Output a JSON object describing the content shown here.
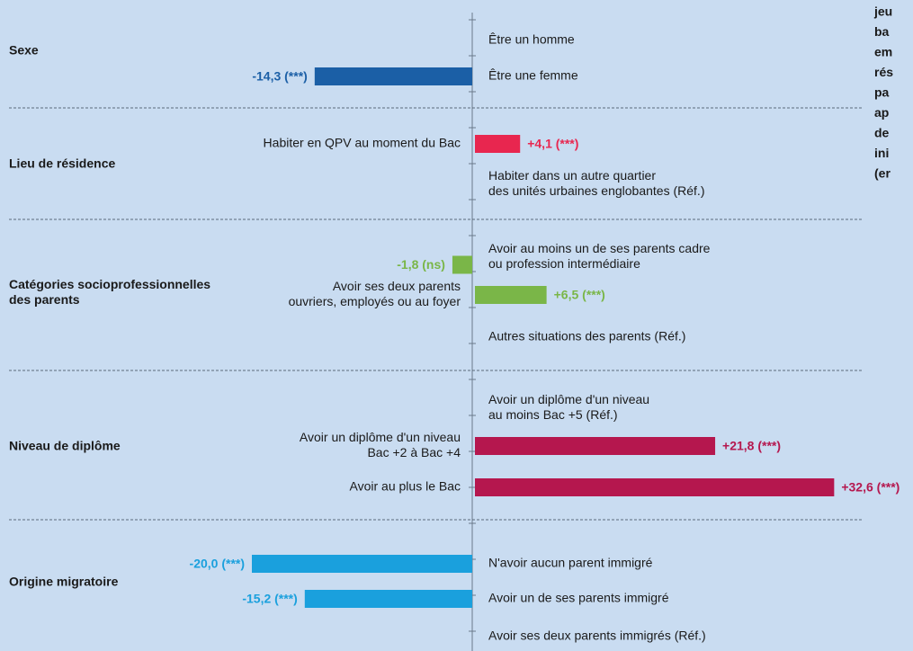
{
  "chart_data": {
    "type": "bar",
    "orientation": "horizontal",
    "note_lines": [
      "jeu",
      "ba",
      "em",
      "rés",
      "pa",
      "ap",
      "de",
      "ini",
      "(er"
    ],
    "groups": [
      {
        "label": [
          "Sexe"
        ],
        "color": "#1b5fa6",
        "items": [
          {
            "label": [
              "Être un homme"
            ],
            "value": null
          },
          {
            "label": [
              "Être une femme"
            ],
            "value": -14.3,
            "value_label": "-14,3 (***)"
          }
        ]
      },
      {
        "label": [
          "Lieu de résidence"
        ],
        "color": "#e8264f",
        "items": [
          {
            "label": [
              "Habiter en QPV au moment du Bac"
            ],
            "value": 4.1,
            "value_label": "+4,1 (***)"
          },
          {
            "label": [
              "Habiter dans un autre quartier",
              "des unités urbaines englobantes  (Réf.)"
            ],
            "value": null
          }
        ]
      },
      {
        "label": [
          "Catégories socioprofessionnelles",
          "des parents"
        ],
        "color": "#7ab648",
        "items": [
          {
            "label": [
              "Avoir au moins un de ses parents cadre",
              "ou profession intermédiaire"
            ],
            "value": -1.8,
            "value_label": "-1,8 (ns)"
          },
          {
            "label": [
              "Avoir ses deux parents",
              "ouvriers, employés ou au foyer"
            ],
            "value": 6.5,
            "value_label": "+6,5 (***)"
          },
          {
            "label": [
              "Autres situations des parents (Réf.)"
            ],
            "value": null
          }
        ]
      },
      {
        "label": [
          "Niveau de diplôme"
        ],
        "color": "#b5174e",
        "items": [
          {
            "label": [
              "Avoir un diplôme d'un niveau",
              "au moins Bac +5  (Réf.)"
            ],
            "value": null
          },
          {
            "label": [
              "Avoir un diplôme d'un niveau",
              "Bac +2 à Bac +4"
            ],
            "value": 21.8,
            "value_label": "+21,8 (***)"
          },
          {
            "label": [
              "Avoir au plus le Bac"
            ],
            "value": 32.6,
            "value_label": "+32,6 (***)"
          }
        ]
      },
      {
        "label": [
          "Origine migratoire"
        ],
        "color": "#1aa0dd",
        "items": [
          {
            "label": [
              "N'avoir aucun parent immigré"
            ],
            "value": -20.0,
            "value_label": "-20,0 (***)"
          },
          {
            "label": [
              "Avoir un de ses parents immigré"
            ],
            "value": -15.2,
            "value_label": "-15,2 (***)"
          },
          {
            "label": [
              "Avoir ses deux parents immigrés (Réf.)"
            ],
            "value": null
          }
        ]
      }
    ]
  }
}
